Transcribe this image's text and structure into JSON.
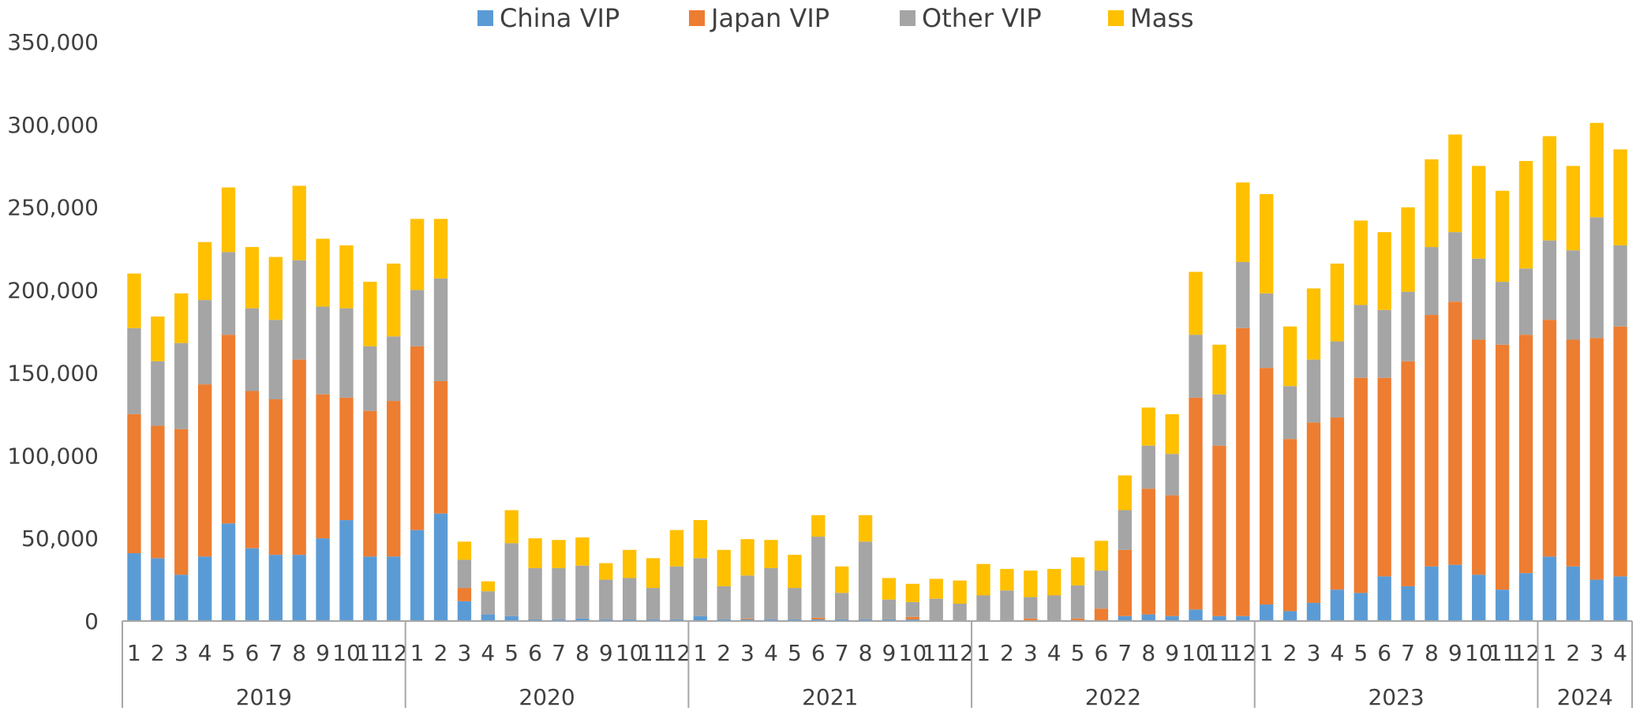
{
  "chart_data": {
    "type": "bar",
    "stacked": true,
    "title": "",
    "xlabel": "",
    "ylabel": "",
    "ylim": [
      0,
      350000
    ],
    "yticks": [
      0,
      50000,
      100000,
      150000,
      200000,
      250000,
      300000,
      350000
    ],
    "ytick_labels": [
      "0",
      "50,000",
      "100,000",
      "150,000",
      "200,000",
      "250,000",
      "300,000",
      "350,000"
    ],
    "grid": false,
    "legend_position": "top-center",
    "years": [
      {
        "label": "2019",
        "months": 12
      },
      {
        "label": "2020",
        "months": 12
      },
      {
        "label": "2021",
        "months": 12
      },
      {
        "label": "2022",
        "months": 12
      },
      {
        "label": "2023",
        "months": 12
      },
      {
        "label": "2024",
        "months": 4
      }
    ],
    "categories": [
      "1",
      "2",
      "3",
      "4",
      "5",
      "6",
      "7",
      "8",
      "9",
      "10",
      "11",
      "12",
      "1",
      "2",
      "3",
      "4",
      "5",
      "6",
      "7",
      "8",
      "9",
      "10",
      "11",
      "12",
      "1",
      "2",
      "3",
      "4",
      "5",
      "6",
      "7",
      "8",
      "9",
      "10",
      "11",
      "12",
      "1",
      "2",
      "3",
      "4",
      "5",
      "6",
      "7",
      "8",
      "9",
      "10",
      "11",
      "12",
      "1",
      "2",
      "3",
      "4",
      "5",
      "6",
      "7",
      "8",
      "9",
      "10",
      "11",
      "12",
      "1",
      "2",
      "3",
      "4"
    ],
    "series": [
      {
        "name": "China VIP",
        "color": "#5B9BD5",
        "values": [
          41000,
          38000,
          28000,
          39000,
          59000,
          44000,
          40000,
          40000,
          50000,
          61000,
          39000,
          39000,
          55000,
          65000,
          12000,
          4000,
          3000,
          1000,
          1000,
          1500,
          1000,
          1000,
          1000,
          1000,
          3000,
          1000,
          1000,
          1000,
          1000,
          1000,
          1000,
          1000,
          1000,
          1000,
          500,
          500,
          500,
          500,
          500,
          500,
          500,
          500,
          3000,
          4000,
          3000,
          7000,
          3000,
          3000,
          10000,
          6000,
          11000,
          19000,
          17000,
          27000,
          21000,
          33000,
          34000,
          28000,
          19000,
          29000,
          39000,
          33000,
          25000,
          27000
        ]
      },
      {
        "name": "Japan VIP",
        "color": "#ED7D31",
        "values": [
          84000,
          80000,
          88000,
          104000,
          114000,
          95000,
          94000,
          118000,
          87000,
          74000,
          88000,
          94000,
          111000,
          80000,
          8000,
          0,
          0,
          0,
          0,
          0,
          0,
          0,
          0,
          0,
          0,
          0,
          500,
          0,
          0,
          1000,
          0,
          0,
          0,
          1500,
          0,
          0,
          0,
          0,
          1000,
          0,
          1000,
          7000,
          40000,
          76000,
          73000,
          128000,
          103000,
          174000,
          143000,
          104000,
          109000,
          104000,
          130000,
          120000,
          136000,
          152000,
          159000,
          142000,
          148000,
          144000,
          143000,
          137000,
          146000,
          151000
        ]
      },
      {
        "name": "Other VIP",
        "color": "#A5A5A5",
        "values": [
          52000,
          39000,
          52000,
          51000,
          50000,
          50000,
          48000,
          60000,
          53000,
          54000,
          39000,
          39000,
          34000,
          62000,
          17000,
          14000,
          44000,
          31000,
          31000,
          32000,
          24000,
          25000,
          19000,
          32000,
          35000,
          20000,
          26000,
          31000,
          19000,
          49000,
          16000,
          47000,
          12000,
          9000,
          13000,
          10000,
          15000,
          18000,
          13000,
          15000,
          20000,
          23000,
          24000,
          26000,
          25000,
          38000,
          31000,
          40000,
          45000,
          32000,
          38000,
          46000,
          44000,
          41000,
          42000,
          41000,
          42000,
          49000,
          38000,
          40000,
          48000,
          54000,
          73000,
          49000
        ]
      },
      {
        "name": "Mass",
        "color": "#FFC000",
        "values": [
          33000,
          27000,
          30000,
          35000,
          39000,
          37000,
          38000,
          45000,
          41000,
          38000,
          39000,
          44000,
          43000,
          36000,
          11000,
          6000,
          20000,
          18000,
          17000,
          17000,
          10000,
          17000,
          18000,
          22000,
          23000,
          22000,
          22000,
          17000,
          20000,
          13000,
          16000,
          16000,
          13000,
          11000,
          12000,
          14000,
          19000,
          13000,
          16000,
          16000,
          17000,
          18000,
          21000,
          23000,
          24000,
          38000,
          30000,
          48000,
          60000,
          36000,
          43000,
          47000,
          51000,
          47000,
          51000,
          53000,
          59000,
          56000,
          55000,
          65000,
          63000,
          51000,
          57000,
          58000
        ]
      }
    ]
  }
}
